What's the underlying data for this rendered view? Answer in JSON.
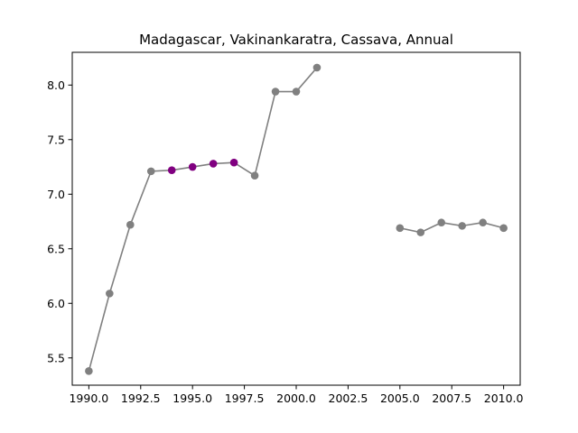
{
  "chart_data": {
    "type": "line",
    "title": "Madagascar, Vakinankaratra, Cassava, Annual",
    "xlabel": "",
    "ylabel": "",
    "xlim": [
      1989.2,
      2010.8
    ],
    "ylim": [
      5.25,
      8.3
    ],
    "xticks": [
      1990.0,
      1992.5,
      1995.0,
      1997.5,
      2000.0,
      2002.5,
      2005.0,
      2007.5,
      2010.0
    ],
    "xtick_labels": [
      "1990.0",
      "1992.5",
      "1995.0",
      "1997.5",
      "2000.0",
      "2002.5",
      "2005.0",
      "2007.5",
      "2010.0"
    ],
    "yticks": [
      5.5,
      6.0,
      6.5,
      7.0,
      7.5,
      8.0
    ],
    "ytick_labels": [
      "5.5",
      "6.0",
      "6.5",
      "7.0",
      "7.5",
      "8.0"
    ],
    "grid": false,
    "line_color": "#808080",
    "highlight_color": "#800080",
    "series": [
      {
        "x": [
          1990,
          1991,
          1992,
          1993,
          1994,
          1995,
          1996,
          1997,
          1998,
          1999,
          2000,
          2001
        ],
        "values": [
          5.38,
          6.09,
          6.72,
          7.21,
          7.22,
          7.25,
          7.28,
          7.29,
          7.17,
          7.94,
          7.94,
          8.16
        ],
        "highlighted_x": [
          1994,
          1995,
          1996,
          1997
        ]
      },
      {
        "x": [
          2005,
          2006,
          2007,
          2008,
          2009,
          2010
        ],
        "values": [
          6.69,
          6.65,
          6.74,
          6.71,
          6.74,
          6.69
        ],
        "highlighted_x": []
      }
    ]
  }
}
